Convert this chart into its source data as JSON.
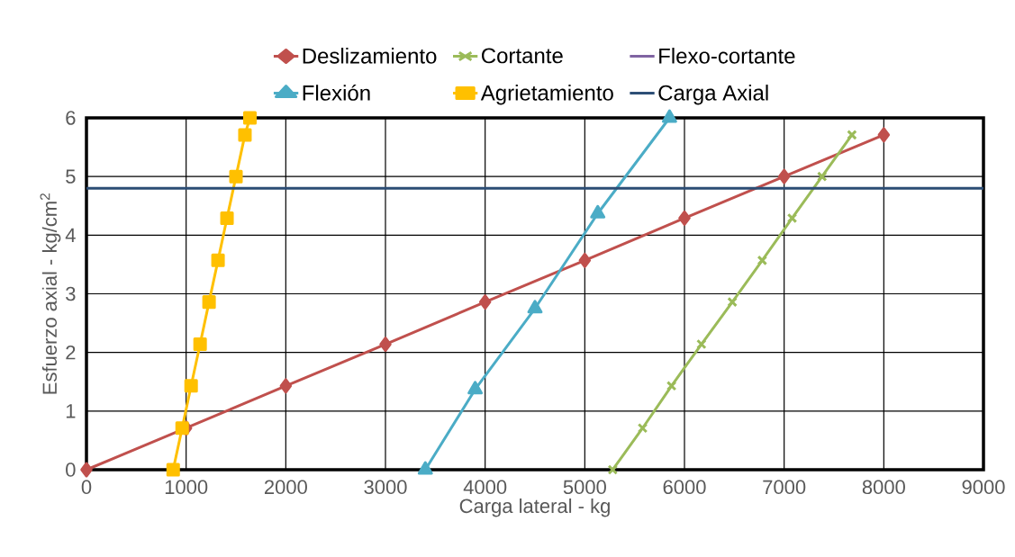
{
  "chart_data": {
    "type": "line",
    "xlabel": "Carga lateral - kg",
    "ylabel": "Esfuerzo axial - kg/cm$^{2}$",
    "xlim": [
      0,
      9000
    ],
    "ylim": [
      0,
      6
    ],
    "xticks": [
      0,
      1000,
      2000,
      3000,
      4000,
      5000,
      6000,
      7000,
      8000,
      9000
    ],
    "yticks": [
      0,
      1,
      2,
      3,
      4,
      5,
      6
    ],
    "grid": true,
    "legend": "top",
    "series": [
      {
        "name": "Deslizamiento",
        "color": "#c0504d",
        "marker": "diamond",
        "x": [
          0,
          1000,
          2000,
          3000,
          4000,
          5000,
          6000,
          7000,
          8000
        ],
        "values": [
          0,
          0.71,
          1.43,
          2.14,
          2.86,
          3.57,
          4.29,
          5.0,
          5.71
        ]
      },
      {
        "name": "Cortante",
        "color": "#9bbb59",
        "marker": "cross",
        "x": [
          5280,
          5580,
          5870,
          6170,
          6480,
          6780,
          7080,
          7380,
          7680
        ],
        "values": [
          0,
          0.71,
          1.43,
          2.14,
          2.86,
          3.57,
          4.29,
          5.0,
          5.71
        ]
      },
      {
        "name": "Flexo-cortante",
        "color": "#8064a2",
        "marker": "none"
      },
      {
        "name": "Flexión",
        "color": "#4bacc6",
        "marker": "triangle",
        "x": [
          3400,
          3900,
          4500,
          5130,
          5850
        ],
        "values": [
          0,
          1.37,
          2.75,
          4.37,
          6.0
        ]
      },
      {
        "name": "Agrietamiento",
        "color": "#ffc000",
        "marker": "square",
        "x": [
          870,
          960,
          1050,
          1140,
          1230,
          1320,
          1410,
          1500,
          1590,
          1640
        ],
        "values": [
          0,
          0.71,
          1.43,
          2.14,
          2.86,
          3.57,
          4.29,
          5.0,
          5.71,
          6.0
        ]
      },
      {
        "name": "Carga Axial",
        "color": "#2c4d75",
        "marker": "none",
        "x": [
          0,
          9000
        ],
        "values": [
          4.8,
          4.8
        ]
      }
    ]
  }
}
